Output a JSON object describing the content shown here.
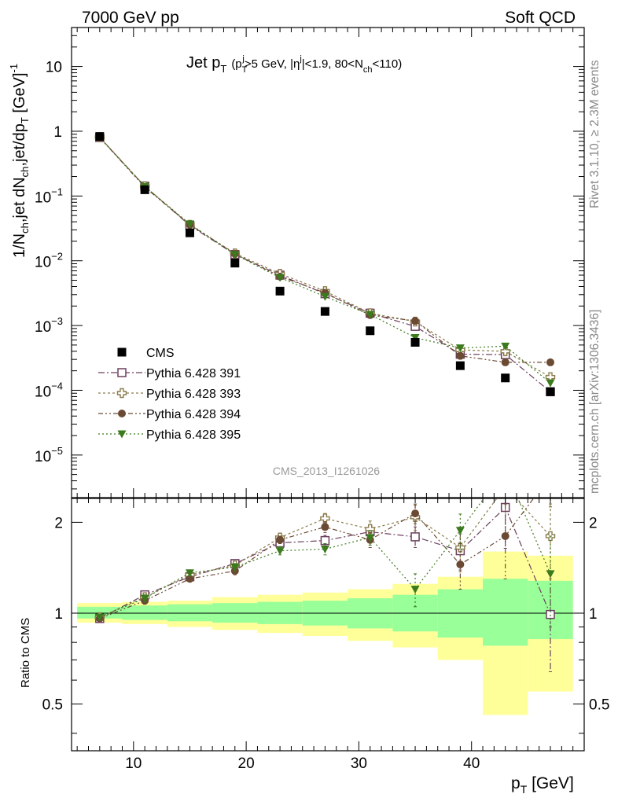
{
  "header": {
    "left": "7000 GeV pp",
    "right": "Soft QCD"
  },
  "side": {
    "rivet": "Rivet 3.1.10, ≥ 2.3M events",
    "mcplots": "mcplots.cern.ch [arXiv:1306.3436]"
  },
  "chart_data": {
    "type": "scatter",
    "title_main": "Jet p",
    "title_sub": "T",
    "title_cond_a": "(p",
    "title_cond_b": "T",
    "title_cond_c": "j",
    "title_cond_d": ">5 GeV, |η",
    "title_cond_e": "j",
    "title_cond_f": "|<1.9, 80<N",
    "title_cond_g": "ch",
    "title_cond_h": "<110)",
    "analysis": "CMS_2013_I1261026",
    "ylabel_top": "1/N",
    "ylabel_top_sub1": "ch",
    "ylabel_top_mid": ",jet dN",
    "ylabel_top_sub2": "ch",
    "ylabel_top_mid2": ",jet/dp",
    "ylabel_top_sub3": "T",
    "ylabel_top_unit": " [GeV]",
    "ylabel_top_sup": "-1",
    "ylabel_ratio": "Ratio to CMS",
    "xlabel": "p",
    "xlabel_sub": "T",
    "xlabel_unit": " [GeV]",
    "x_ticks": [
      "10",
      "20",
      "30",
      "40"
    ],
    "x_tick_values": [
      10,
      20,
      30,
      40
    ],
    "xlim": [
      4.5,
      50
    ],
    "ylim_top": [
      2.2e-06,
      40
    ],
    "y_ticks_top": [
      {
        "value": 10,
        "base": "10",
        "exp": ""
      },
      {
        "value": 1,
        "base": "1",
        "exp": ""
      },
      {
        "value": 0.1,
        "base": "10",
        "exp": "−1"
      },
      {
        "value": 0.01,
        "base": "10",
        "exp": "−2"
      },
      {
        "value": 0.001,
        "base": "10",
        "exp": "−3"
      },
      {
        "value": 0.0001,
        "base": "10",
        "exp": "−4"
      },
      {
        "value": 1e-05,
        "base": "10",
        "exp": "−5"
      }
    ],
    "ylim_ratio": [
      0.35,
      2.4
    ],
    "y_ticks_ratio": [
      "0.5",
      "1",
      "2"
    ],
    "y_tick_values_ratio": [
      0.5,
      1,
      2
    ],
    "x": [
      7,
      11,
      15,
      19,
      23,
      27,
      31,
      35,
      39,
      43,
      47
    ],
    "x_bins": [
      [
        5,
        9
      ],
      [
        9,
        13
      ],
      [
        13,
        17
      ],
      [
        17,
        21
      ],
      [
        21,
        25
      ],
      [
        25,
        29
      ],
      [
        29,
        33
      ],
      [
        33,
        37
      ],
      [
        37,
        41
      ],
      [
        41,
        45
      ],
      [
        45,
        49
      ]
    ],
    "cms": {
      "name": "CMS",
      "values": [
        0.83,
        0.125,
        0.027,
        0.0092,
        0.0034,
        0.00165,
        0.00083,
        0.00055,
        0.00024,
        0.000155,
        9.5e-05
      ]
    },
    "band_outer": [
      [
        0.93,
        1.08
      ],
      [
        0.92,
        1.09
      ],
      [
        0.9,
        1.1
      ],
      [
        0.88,
        1.13
      ],
      [
        0.86,
        1.15
      ],
      [
        0.84,
        1.17
      ],
      [
        0.81,
        1.2
      ],
      [
        0.77,
        1.25
      ],
      [
        0.7,
        1.32
      ],
      [
        0.46,
        1.6
      ],
      [
        0.55,
        1.55
      ]
    ],
    "band_inner": [
      [
        0.96,
        1.05
      ],
      [
        0.95,
        1.06
      ],
      [
        0.94,
        1.07
      ],
      [
        0.93,
        1.08
      ],
      [
        0.92,
        1.09
      ],
      [
        0.91,
        1.1
      ],
      [
        0.89,
        1.12
      ],
      [
        0.87,
        1.15
      ],
      [
        0.83,
        1.2
      ],
      [
        0.78,
        1.3
      ],
      [
        0.82,
        1.28
      ]
    ],
    "series": [
      {
        "name": "Pythia 6.428 391",
        "color": "#6b3f5e",
        "marker": "open-square",
        "dash": "8,3,2,3",
        "values": [
          0.8,
          0.142,
          0.035,
          0.0125,
          0.006,
          0.0031,
          0.00155,
          0.00097,
          0.00036,
          0.000355,
          9.5e-05
        ],
        "ratio": [
          0.96,
          1.15,
          1.32,
          1.46,
          1.71,
          1.74,
          1.86,
          1.79,
          1.61,
          2.24,
          0.99
        ],
        "ratio_err": [
          0.02,
          0.03,
          0.03,
          0.04,
          0.05,
          0.07,
          0.1,
          0.14,
          0.22,
          0.6,
          0.35
        ]
      },
      {
        "name": "Pythia 6.428 393",
        "color": "#8a7a4a",
        "marker": "open-cross",
        "dash": "3,3",
        "values": [
          0.81,
          0.142,
          0.036,
          0.013,
          0.0063,
          0.0034,
          0.00155,
          0.00115,
          0.00042,
          0.0004,
          0.00016
        ],
        "ratio": [
          0.97,
          1.13,
          1.34,
          1.44,
          1.78,
          2.06,
          1.9,
          2.08,
          1.65,
          2.62,
          1.8
        ],
        "ratio_err": [
          0.02,
          0.03,
          0.03,
          0.05,
          0.06,
          0.08,
          0.12,
          0.2,
          0.28,
          0.8,
          0.5
        ]
      },
      {
        "name": "Pythia 6.428 394",
        "color": "#6b4a34",
        "marker": "filled-circle",
        "dash": "6,3,2,3,2,3",
        "values": [
          0.8,
          0.137,
          0.036,
          0.0128,
          0.0057,
          0.0032,
          0.00145,
          0.00118,
          0.00034,
          0.00027,
          0.00027
        ],
        "ratio": [
          0.96,
          1.1,
          1.3,
          1.38,
          1.75,
          1.93,
          1.75,
          2.14,
          1.45,
          1.8,
          2.85
        ],
        "ratio_err": [
          0.02,
          0.03,
          0.03,
          0.04,
          0.05,
          0.08,
          0.1,
          0.16,
          0.25,
          0.5,
          0.6
        ]
      },
      {
        "name": "Pythia 6.428 395",
        "color": "#3c7a1e",
        "marker": "filled-triangle-down",
        "dash": "2,3",
        "values": [
          0.81,
          0.14,
          0.037,
          0.0125,
          0.0055,
          0.0028,
          0.00148,
          0.00065,
          0.00045,
          0.00048,
          0.00013
        ],
        "ratio": [
          0.97,
          1.12,
          1.36,
          1.42,
          1.61,
          1.63,
          1.78,
          1.2,
          1.88,
          3.0,
          1.35
        ],
        "ratio_err": [
          0.02,
          0.03,
          0.03,
          0.04,
          0.05,
          0.07,
          0.1,
          0.15,
          0.25,
          0.6,
          0.45
        ]
      }
    ],
    "colors": {
      "band_outer": "#ffff99",
      "band_inner": "#99ff99",
      "cms": "#000000"
    }
  }
}
